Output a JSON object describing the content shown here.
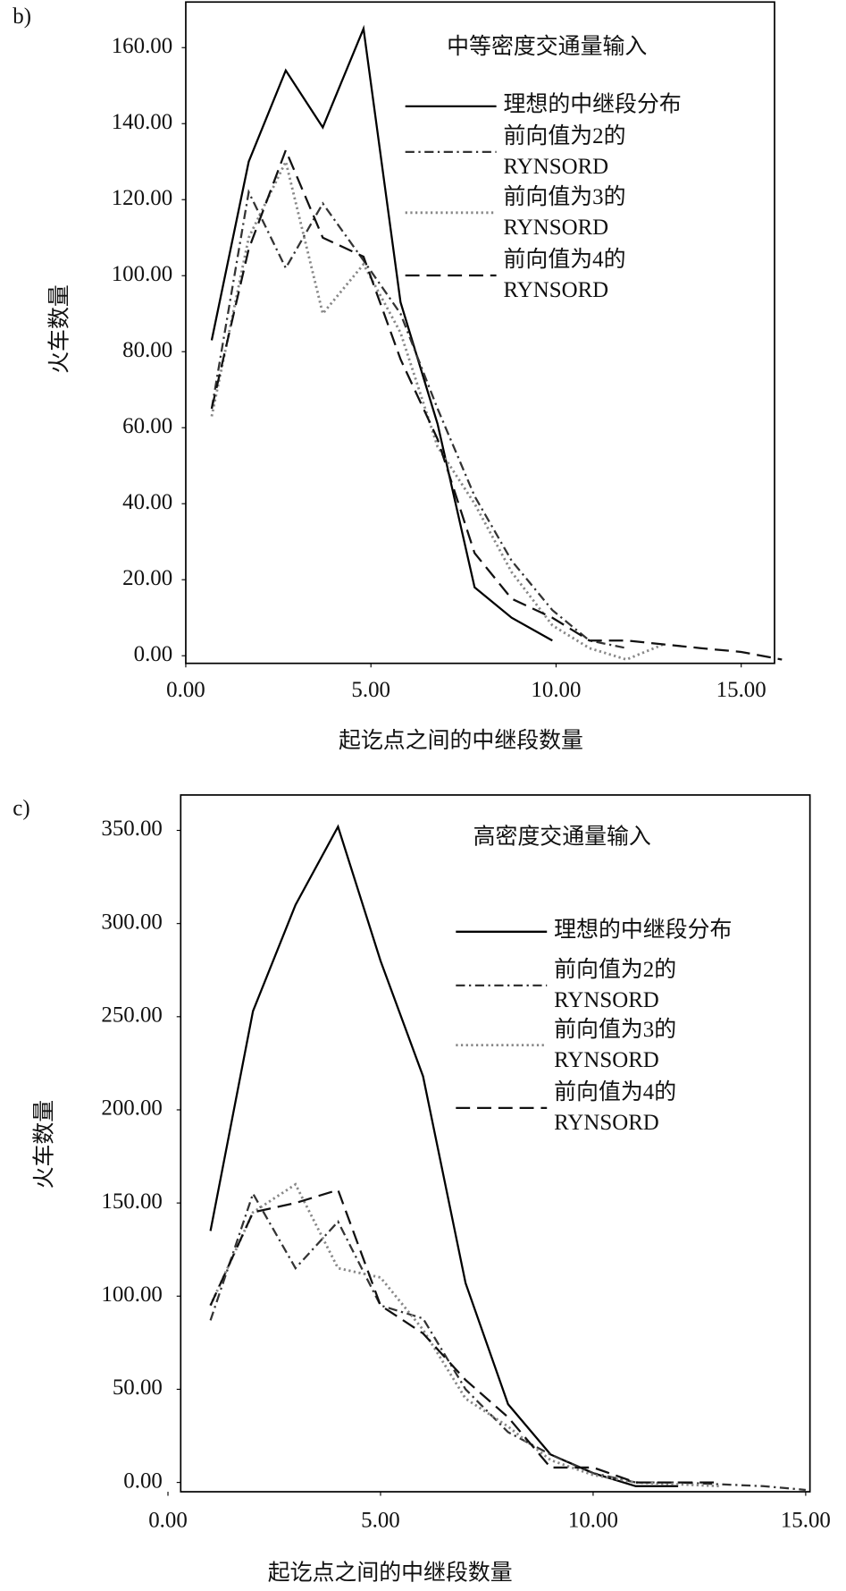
{
  "chart_data": [
    {
      "type": "line",
      "panel": "b)",
      "title": "中等密度交通量输入",
      "xlabel": "起讫点之间的中继段数量",
      "ylabel": "火车数量",
      "x": [
        0.7,
        1.7,
        2.7,
        3.7,
        4.8,
        5.8,
        6.8,
        7.8,
        8.8,
        9.9,
        10.9,
        11.9,
        12.9,
        13.9,
        15,
        16.1
      ],
      "xlim": [
        0,
        15.9
      ],
      "ylim": [
        -2,
        172
      ],
      "xticks": [
        {
          "value": 0,
          "label": "0.00"
        },
        {
          "value": 5,
          "label": "5.00"
        },
        {
          "value": 10,
          "label": "10.00"
        },
        {
          "value": 15,
          "label": "15.00"
        }
      ],
      "yticks": [
        {
          "value": 0,
          "label": "0.00"
        },
        {
          "value": 20,
          "label": "20.00"
        },
        {
          "value": 40,
          "label": "40.00"
        },
        {
          "value": 60,
          "label": "60.00"
        },
        {
          "value": 80,
          "label": "80.00"
        },
        {
          "value": 100,
          "label": "100.00"
        },
        {
          "value": 120,
          "label": "120.00"
        },
        {
          "value": 140,
          "label": "140.00"
        },
        {
          "value": 160,
          "label": "160.00"
        }
      ],
      "series": [
        {
          "name": "理想的中继段分布",
          "color": "#000000",
          "linestyle": "solid",
          "values": [
            83,
            130,
            154,
            139,
            165,
            93,
            61,
            18,
            10,
            4,
            null,
            null,
            null,
            null,
            null,
            null
          ]
        },
        {
          "name": "前向值为2的 RYNSORD",
          "color": "#333333",
          "linestyle": "dashdot",
          "values": [
            65,
            122,
            102,
            119,
            104,
            90,
            65,
            42,
            25,
            12,
            4,
            2,
            null,
            null,
            null,
            null
          ]
        },
        {
          "name": "前向值为3的 RYNSORD",
          "color": "#888888",
          "linestyle": "dotted",
          "values": [
            63,
            110,
            130,
            90,
            103,
            85,
            55,
            40,
            22,
            8,
            2,
            -1,
            3,
            null,
            null,
            null
          ]
        },
        {
          "name": "前向值为4的 RYNSORD",
          "color": "#111111",
          "linestyle": "dashed",
          "values": [
            65,
            107,
            133,
            110,
            105,
            78,
            57,
            27,
            15,
            10,
            4,
            4,
            3,
            2,
            1,
            -1
          ]
        }
      ]
    },
    {
      "type": "line",
      "panel": "c)",
      "title": "高密度交通量输入",
      "xlabel": "起讫点之间的中继段数量",
      "ylabel": "火车数量",
      "x": [
        1,
        2,
        3,
        4,
        5,
        6,
        7,
        8,
        9,
        10,
        11,
        12,
        13,
        14,
        15
      ],
      "xlim": [
        0.3,
        15.1
      ],
      "ylim": [
        -5,
        369
      ],
      "xticks": [
        {
          "value": 0,
          "label": "0.00"
        },
        {
          "value": 5,
          "label": "5.00"
        },
        {
          "value": 10,
          "label": "10.00"
        },
        {
          "value": 15,
          "label": "15.00"
        }
      ],
      "yticks": [
        {
          "value": 0,
          "label": "0.00"
        },
        {
          "value": 50,
          "label": "50.00"
        },
        {
          "value": 100,
          "label": "100.00"
        },
        {
          "value": 150,
          "label": "150.00"
        },
        {
          "value": 200,
          "label": "200.00"
        },
        {
          "value": 250,
          "label": "250.00"
        },
        {
          "value": 300,
          "label": "300.00"
        },
        {
          "value": 350,
          "label": "350.00"
        }
      ],
      "series": [
        {
          "name": "理想的中继段分布",
          "color": "#000000",
          "linestyle": "solid",
          "values": [
            135,
            253,
            310,
            352,
            280,
            218,
            107,
            42,
            15,
            5,
            -2,
            -2,
            null,
            null,
            null
          ]
        },
        {
          "name": "前向值为2的 RYNSORD",
          "color": "#333333",
          "linestyle": "dashdot",
          "values": [
            87,
            155,
            115,
            140,
            95,
            88,
            50,
            27,
            15,
            5,
            0,
            0,
            -1,
            -2,
            -4
          ]
        },
        {
          "name": "前向值为3的 RYNSORD",
          "color": "#888888",
          "linestyle": "dotted",
          "values": [
            95,
            145,
            160,
            115,
            110,
            82,
            45,
            30,
            12,
            4,
            0,
            -1,
            -2,
            null,
            null
          ]
        },
        {
          "name": "前向值为4的 RYNSORD",
          "color": "#111111",
          "linestyle": "dashed",
          "values": [
            95,
            145,
            150,
            157,
            95,
            80,
            55,
            35,
            8,
            8,
            0,
            0,
            0,
            null,
            null
          ]
        }
      ]
    }
  ]
}
